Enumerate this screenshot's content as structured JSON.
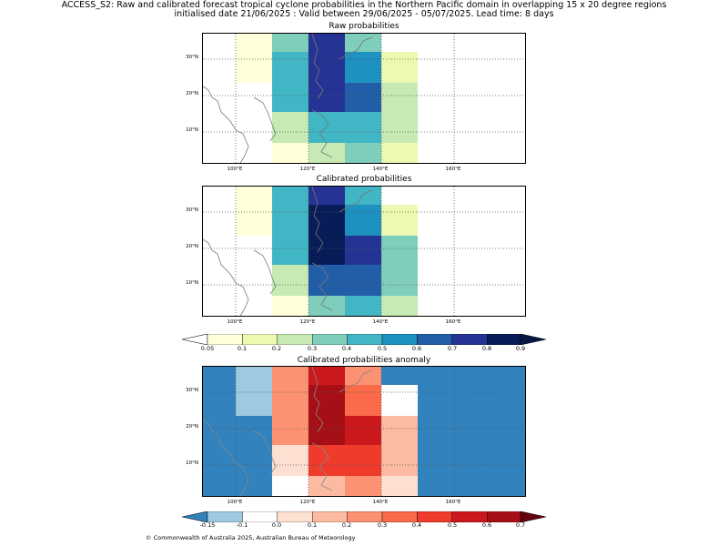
{
  "title": {
    "line1": "ACCESS_S2: Raw and calibrated forecast tropical cyclone probabilities in the Northern Pacific domain in overlapping 15 x 20 degree regions",
    "line2": "initialised date 21/06/2025 :  Valid between 29/06/2025 - 05/07/2025. Lead time: 8 days"
  },
  "panels": {
    "raw": {
      "title": "Raw probabilities"
    },
    "calibrated": {
      "title": "Calibrated probabilities"
    },
    "anomaly": {
      "title": "Calibrated probabilities anomaly"
    }
  },
  "axes": {
    "lat_ticks": [
      "30°N",
      "20°N",
      "10°N"
    ],
    "lon_ticks": [
      "100°E",
      "120°E",
      "140°E",
      "160°E"
    ]
  },
  "colorbars": {
    "probability": {
      "ticks": [
        "0.05",
        "0.1",
        "0.2",
        "0.3",
        "0.4",
        "0.5",
        "0.6",
        "0.7",
        "0.8",
        "0.9"
      ],
      "colors": [
        "#ffffff",
        "#ffffd9",
        "#edf8b1",
        "#c7e9b4",
        "#7fcdbb",
        "#41b6c4",
        "#1d91c0",
        "#225ea8",
        "#253494",
        "#081d58",
        "#061848"
      ]
    },
    "anomaly": {
      "ticks": [
        "-0.15",
        "-0.1",
        "0.0",
        "0.1",
        "0.2",
        "0.3",
        "0.4",
        "0.5",
        "0.6",
        "0.7"
      ],
      "colors": [
        "#3182bd",
        "#9ecae1",
        "#ffffff",
        "#fee0d2",
        "#fcbba1",
        "#fc9272",
        "#fb6a4a",
        "#ef3b2c",
        "#cb181d",
        "#a50f15",
        "#67000d"
      ]
    }
  },
  "map_grid": {
    "columns_lon": [
      "100°E-110°E",
      "110°E-120°E",
      "120°E-130°E",
      "130°E-140°E",
      "140°E-150°E"
    ],
    "raw_cells": [
      {
        "lon": "110-120E",
        "lat": "35-40N",
        "color": "#ffffd9"
      },
      {
        "lon": "110-120E",
        "lat": "25-35N",
        "color": "#ffffd9"
      }
    ]
  },
  "copyright": "© Commonwealth of Australia 2025, Australian Bureau of Meteorology"
}
